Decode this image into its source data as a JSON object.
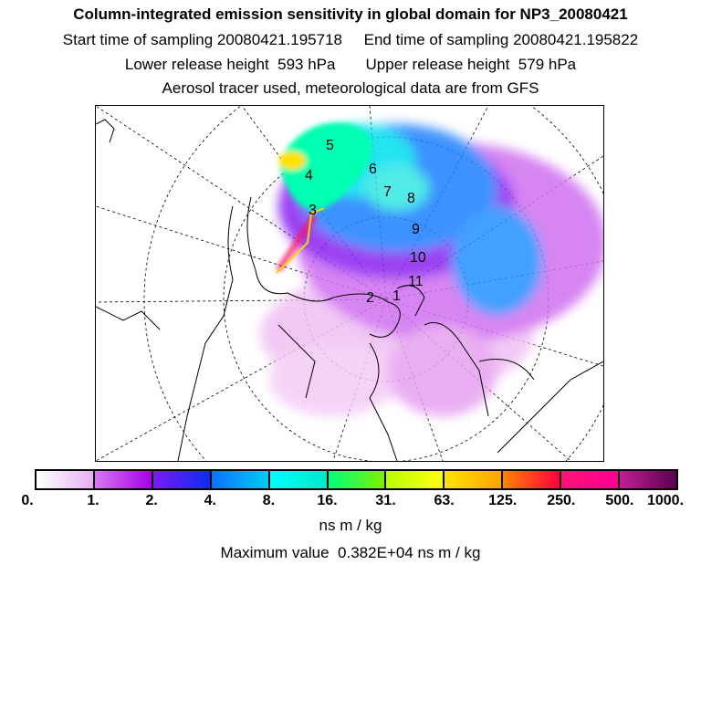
{
  "header": {
    "title": "Column-integrated emission sensitivity in global domain for NP3_20080421",
    "line2": "Start time of sampling 20080421.195718     End time of sampling 20080421.195822",
    "line3": "Lower release height  593 hPa       Upper release height  579 hPa",
    "line4": "Aerosol tracer used, meteorological data are from GFS"
  },
  "map": {
    "projection": "north-polar-stereographic",
    "track_labels": [
      "1",
      "2",
      "3",
      "4",
      "5",
      "6",
      "7",
      "8",
      "9",
      "10",
      "11"
    ]
  },
  "colorbar": {
    "ticks": [
      "0.",
      "1.",
      "2.",
      "4.",
      "8.",
      "16.",
      "31.",
      "63.",
      "125.",
      "250.",
      "500.",
      "1000."
    ],
    "segments": [
      [
        "#ffffff",
        "#e8b0f2"
      ],
      [
        "#d878f4",
        "#a400e4"
      ],
      [
        "#7a1cf2",
        "#0c2cf0"
      ],
      [
        "#1070ff",
        "#00ccf4"
      ],
      [
        "#00ffff",
        "#00e8c8"
      ],
      [
        "#00ff80",
        "#80f000"
      ],
      [
        "#b8ff00",
        "#ffff10"
      ],
      [
        "#ffe400",
        "#ffa400"
      ],
      [
        "#ff8400",
        "#ff0040"
      ],
      [
        "#ff1478",
        "#ff0090"
      ],
      [
        "#c02094",
        "#5c0050"
      ]
    ],
    "unit": "ns m / kg",
    "max_value": "Maximum value  0.382E+04 ns m / kg"
  }
}
